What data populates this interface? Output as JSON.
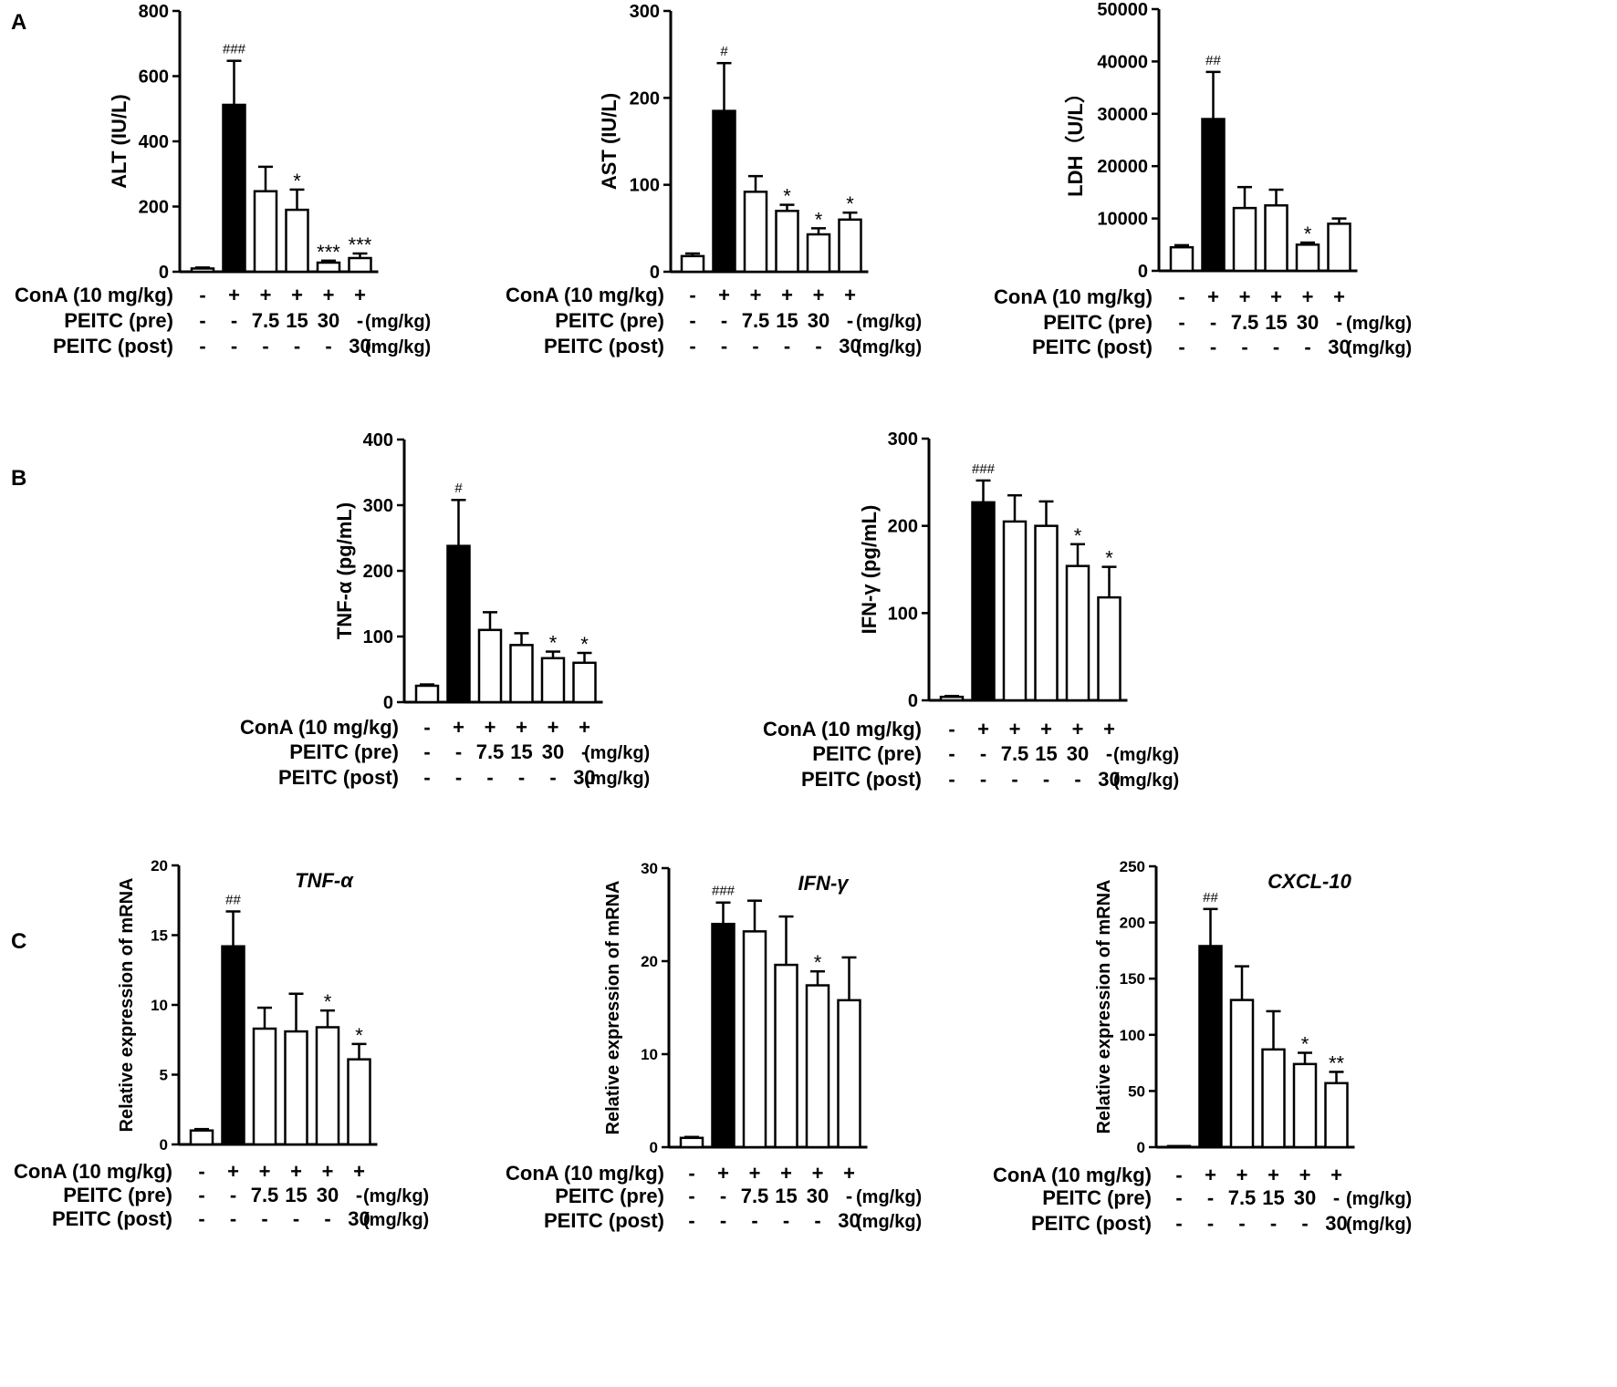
{
  "panel_labels": [
    "A",
    "B",
    "C"
  ],
  "row_labels": {
    "cona": "ConA (10 mg/kg)",
    "pre": "PEITC (pre)",
    "post": "PEITC (post)",
    "unit": "(mg/kg)"
  },
  "group_codes": {
    "cona": [
      "-",
      "+",
      "+",
      "+",
      "+",
      "+"
    ],
    "pre": [
      "-",
      "-",
      "7.5",
      "15",
      "30",
      "-"
    ],
    "post": [
      "-",
      "-",
      "-",
      "-",
      "-",
      "30"
    ]
  },
  "colors": {
    "ink": "#000000",
    "filled": "#000000",
    "open": "#ffffff"
  },
  "chart_data": [
    {
      "id": "alt",
      "panel": "A",
      "type": "bar",
      "title": "",
      "ylabel": "ALT (IU/L)",
      "ylim": [
        0,
        800
      ],
      "yticks": [
        0,
        200,
        400,
        600,
        800
      ],
      "tick_size": 20,
      "bar_fills": [
        "open",
        "filled",
        "open",
        "open",
        "open",
        "open"
      ],
      "values": [
        10,
        512,
        247,
        190,
        28,
        42
      ],
      "errors": [
        3,
        135,
        75,
        62,
        6,
        14
      ],
      "annotations": [
        "",
        "###",
        "",
        "*",
        "***",
        "***"
      ]
    },
    {
      "id": "ast",
      "panel": "A",
      "type": "bar",
      "title": "",
      "ylabel": "AST (IU/L)",
      "ylim": [
        0,
        300
      ],
      "yticks": [
        0,
        100,
        200,
        300
      ],
      "tick_size": 20,
      "bar_fills": [
        "open",
        "filled",
        "open",
        "open",
        "open",
        "open"
      ],
      "values": [
        18,
        185,
        92,
        70,
        43,
        60
      ],
      "errors": [
        3,
        55,
        18,
        7,
        7,
        8
      ],
      "annotations": [
        "",
        "#",
        "",
        "*",
        "*",
        "*"
      ]
    },
    {
      "id": "ldh",
      "panel": "A",
      "type": "bar",
      "title": "",
      "ylabel": "LDH（U/L）",
      "ylim": [
        0,
        50000
      ],
      "yticks": [
        0,
        10000,
        20000,
        30000,
        40000,
        50000
      ],
      "tick_size": 20,
      "bar_fills": [
        "open",
        "filled",
        "open",
        "open",
        "open",
        "open"
      ],
      "values": [
        4500,
        29000,
        12000,
        12500,
        5000,
        9000
      ],
      "errors": [
        400,
        9000,
        4000,
        3000,
        400,
        1000
      ],
      "annotations": [
        "",
        "##",
        "",
        "",
        "*",
        ""
      ]
    },
    {
      "id": "tnf_protein",
      "panel": "B",
      "type": "bar",
      "title": "",
      "ylabel": "TNF-α  (pg/mL)",
      "ylim": [
        0,
        400
      ],
      "yticks": [
        0,
        100,
        200,
        300,
        400
      ],
      "tick_size": 20,
      "bar_fills": [
        "open",
        "filled",
        "open",
        "open",
        "open",
        "open"
      ],
      "values": [
        25,
        238,
        110,
        87,
        67,
        60
      ],
      "errors": [
        2,
        70,
        27,
        18,
        10,
        15
      ],
      "annotations": [
        "",
        "#",
        "",
        "",
        "*",
        "*"
      ]
    },
    {
      "id": "ifn_protein",
      "panel": "B",
      "type": "bar",
      "title": "",
      "ylabel": "IFN-γ  (pg/mL)",
      "ylim": [
        0,
        300
      ],
      "yticks": [
        0,
        100,
        200,
        300
      ],
      "tick_size": 20,
      "bar_fills": [
        "open",
        "filled",
        "open",
        "open",
        "open",
        "open"
      ],
      "values": [
        4,
        227,
        205,
        200,
        154,
        118
      ],
      "errors": [
        1,
        25,
        30,
        28,
        25,
        35
      ],
      "annotations": [
        "",
        "###",
        "",
        "",
        "*",
        "*"
      ]
    },
    {
      "id": "tnf_mrna",
      "panel": "C",
      "type": "bar",
      "title": "TNF-α",
      "ylabel": "Relative expression of mRNA",
      "ylim": [
        0,
        20
      ],
      "yticks": [
        0,
        5,
        10,
        15,
        20
      ],
      "tick_size": 17,
      "bar_fills": [
        "open",
        "filled",
        "open",
        "open",
        "open",
        "open"
      ],
      "values": [
        1,
        14.2,
        8.3,
        8.1,
        8.4,
        6.1
      ],
      "errors": [
        0.1,
        2.5,
        1.5,
        2.7,
        1.2,
        1.1
      ],
      "annotations": [
        "",
        "##",
        "",
        "",
        "*",
        "*"
      ]
    },
    {
      "id": "ifn_mrna",
      "panel": "C",
      "type": "bar",
      "title": "IFN-γ",
      "ylabel": "Relative expression of mRNA",
      "ylim": [
        0,
        30
      ],
      "yticks": [
        0,
        10,
        20,
        30
      ],
      "tick_size": 17,
      "bar_fills": [
        "open",
        "filled",
        "open",
        "open",
        "open",
        "open"
      ],
      "values": [
        1,
        24,
        23.2,
        19.6,
        17.4,
        15.8
      ],
      "errors": [
        0.1,
        2.3,
        3.3,
        5.2,
        1.5,
        4.6
      ],
      "annotations": [
        "",
        "###",
        "",
        "",
        "*",
        ""
      ]
    },
    {
      "id": "cxcl10_mrna",
      "panel": "C",
      "type": "bar",
      "title": "CXCL-10",
      "ylabel": "Relative expression of mRNA",
      "ylim": [
        0,
        250
      ],
      "yticks": [
        0,
        50,
        100,
        150,
        200,
        250
      ],
      "tick_size": 17,
      "bar_fills": [
        "open",
        "filled",
        "open",
        "open",
        "open",
        "open"
      ],
      "values": [
        1,
        179,
        131,
        87,
        74,
        57
      ],
      "errors": [
        0,
        33,
        30,
        34,
        10,
        10
      ],
      "annotations": [
        "",
        "##",
        "",
        "",
        "*",
        "**"
      ]
    }
  ]
}
